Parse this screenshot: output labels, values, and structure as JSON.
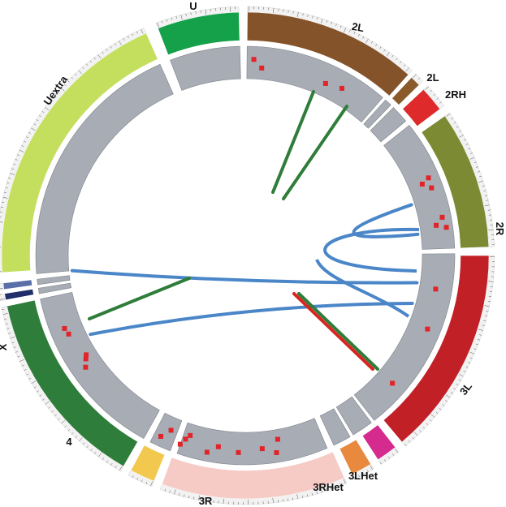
{
  "colors": {
    "track_gray": "#a8adb5",
    "feature_red": "#e0242a",
    "link_blue": "#4a86c8",
    "link_green": "#2f7d3a",
    "link_red": "#d7261f",
    "tick": "#555555"
  },
  "chromosomes": [
    {
      "name": "U",
      "label": "U",
      "start": 0.0,
      "end": 0.0,
      "color": "#15a14a"
    },
    {
      "name": "2L",
      "label": "2L",
      "start": 0.0,
      "end": 0.0,
      "color": "#85532a"
    },
    {
      "name": "2LHet",
      "label": "2L",
      "start": 0.0,
      "end": 0.0,
      "color": "#8a5a2b"
    },
    {
      "name": "2RHet",
      "label": "2RH",
      "start": 0.0,
      "end": 0.0,
      "color": "#de2a2a"
    },
    {
      "name": "2R",
      "label": "2R",
      "start": 0.0,
      "end": 0.0,
      "color": "#7c8a33"
    },
    {
      "name": "3L",
      "label": "3L",
      "start": 0.0,
      "end": 0.0,
      "color": "#c12027"
    },
    {
      "name": "3LHet",
      "label": "3LHet",
      "start": 0.0,
      "end": 0.0,
      "color": "#d52a8e"
    },
    {
      "name": "3RHet",
      "label": "3RHet",
      "start": 0.0,
      "end": 0.0,
      "color": "#e8893e"
    },
    {
      "name": "3R",
      "label": "3R",
      "start": 0.0,
      "end": 0.0,
      "color": "#f6cbc6"
    },
    {
      "name": "4",
      "label": "4",
      "start": 0.0,
      "end": 0.0,
      "color": "#f3c84e"
    },
    {
      "name": "X",
      "label": "X",
      "start": 0.0,
      "end": 0.0,
      "color": "#2f7d3a"
    },
    {
      "name": "XHet",
      "label": "",
      "start": 0.0,
      "end": 0.0,
      "color": "#1e2f6a"
    },
    {
      "name": "YHet",
      "label": "",
      "start": 0.0,
      "end": 0.0,
      "color": "#5a6ea8"
    },
    {
      "name": "Uextra",
      "label": "Uextra",
      "start": 0.0,
      "end": 0.0,
      "color": "#c3df5d"
    }
  ]
}
